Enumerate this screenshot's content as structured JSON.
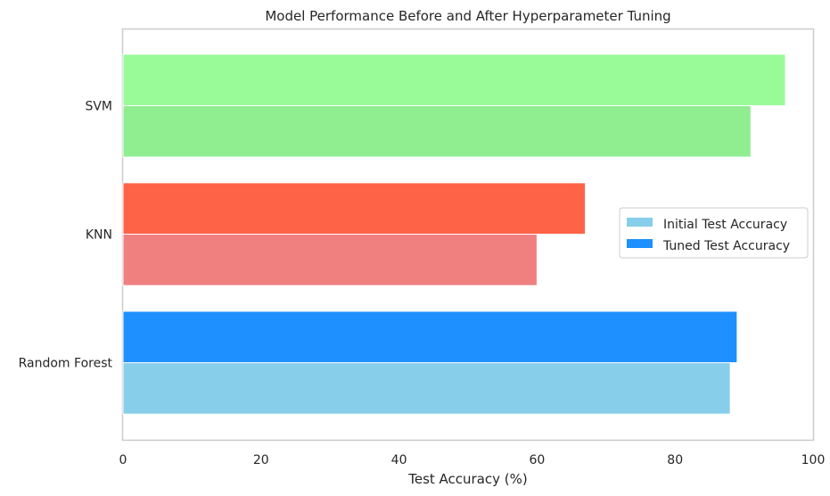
{
  "chart_data": {
    "type": "bar",
    "orientation": "horizontal",
    "title": "Model Performance Before and After Hyperparameter Tuning",
    "xlabel": "Test Accuracy (%)",
    "ylabel": "",
    "xlim": [
      0,
      100
    ],
    "xticks": [
      "0",
      "20",
      "40",
      "60",
      "80",
      "100"
    ],
    "categories": [
      "Random Forest",
      "KNN",
      "SVM"
    ],
    "series": [
      {
        "name": "Initial Test Accuracy",
        "values": [
          88,
          60,
          91
        ],
        "colors": [
          "#87ceeb",
          "#f08080",
          "#90ee90"
        ],
        "legend_color": "#87ceeb"
      },
      {
        "name": "Tuned Test Accuracy",
        "values": [
          89,
          67,
          96
        ],
        "colors": [
          "#1e90ff",
          "#ff6347",
          "#98fb98"
        ],
        "legend_color": "#1e90ff"
      }
    ],
    "grid": false,
    "legend_position": "center-right"
  }
}
